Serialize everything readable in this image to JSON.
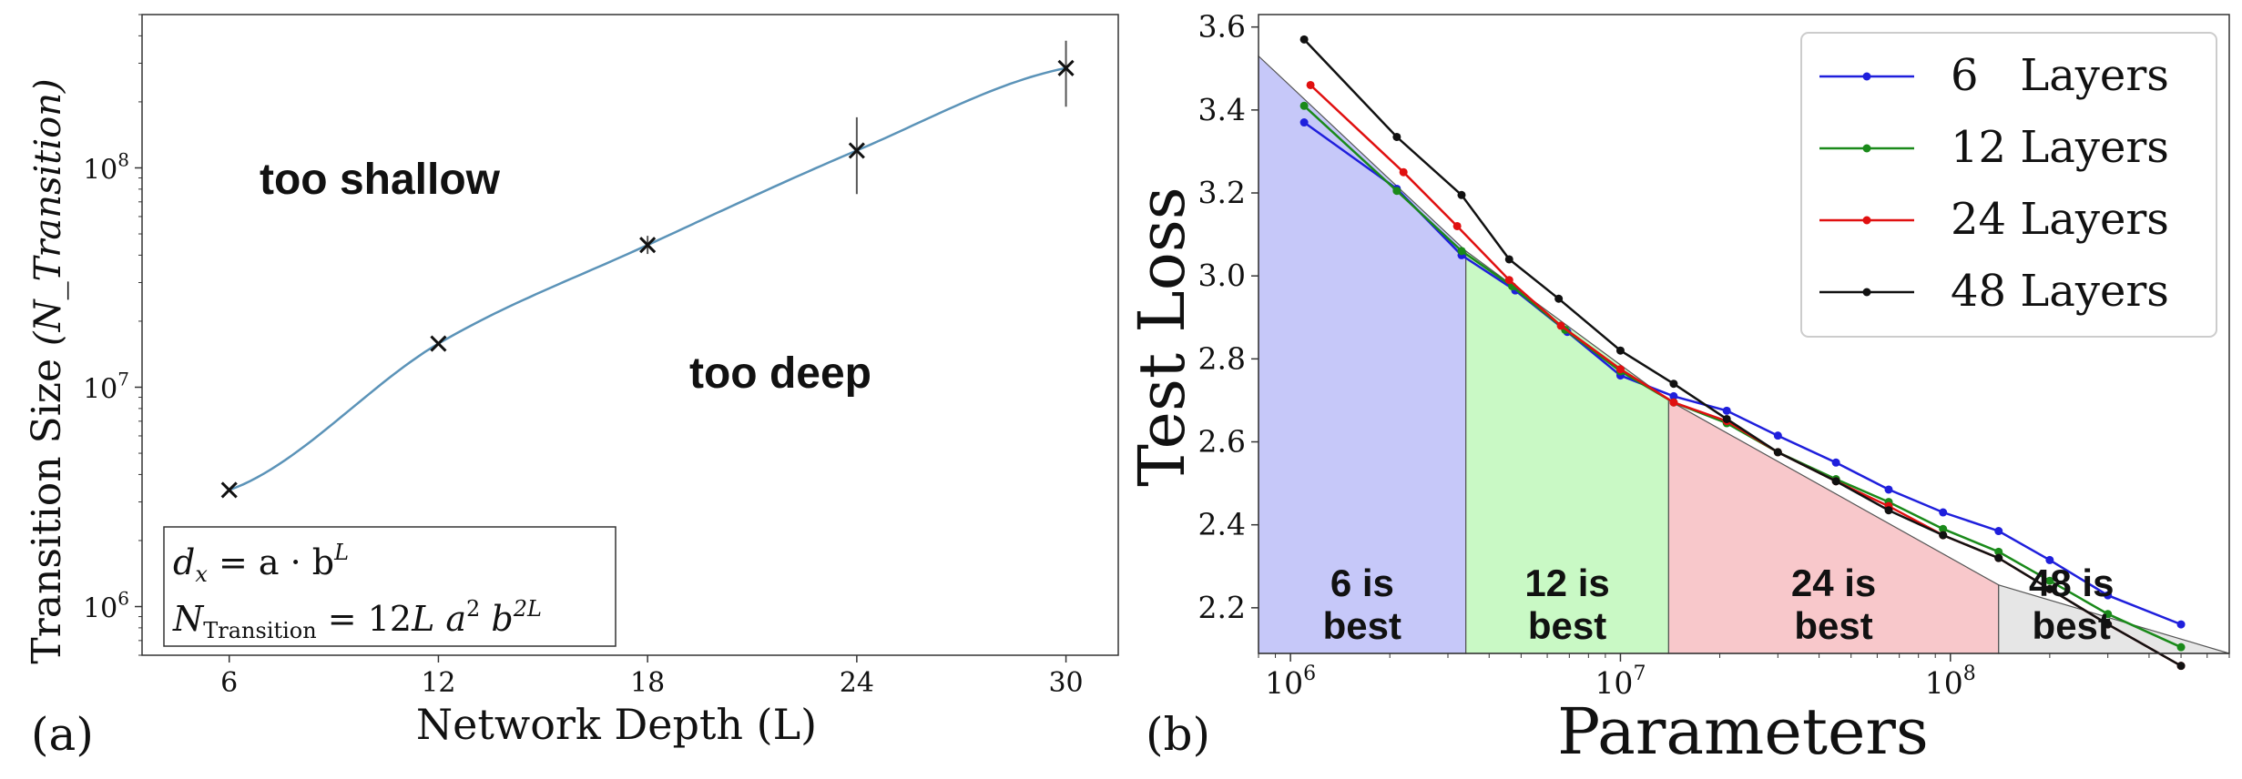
{
  "chart_data": [
    {
      "panel_label": "(a)",
      "type": "line",
      "yscale": "log",
      "xlabel": "Network Depth (L)",
      "ylabel": "Transition Size",
      "ylabel_symbol": "(N_Transition)",
      "xticks": [
        6,
        12,
        18,
        24,
        30
      ],
      "xlim": [
        3.5,
        31.5
      ],
      "ylim": [
        600000,
        500000000
      ],
      "yticks": [
        {
          "value": 1000000,
          "label_base": "10",
          "label_exp": "6"
        },
        {
          "value": 10000000,
          "label_base": "10",
          "label_exp": "7"
        },
        {
          "value": 100000000,
          "label_base": "10",
          "label_exp": "8"
        }
      ],
      "series": [
        {
          "name": "measured",
          "marker": "x",
          "x": [
            6,
            12,
            18,
            24,
            30
          ],
          "y": [
            3400000,
            15800000,
            44500000,
            120000000,
            285000000
          ],
          "yerr_low": [
            3400000,
            15800000,
            40500000,
            76000000,
            190000000
          ],
          "yerr_high": [
            3400000,
            15800000,
            49000000,
            170000000,
            380000000
          ]
        }
      ],
      "fit": {
        "name": "fit",
        "color": "#5b93b8",
        "x_start": 6,
        "x_end": 30
      },
      "annotations": {
        "upper": "too shallow",
        "lower": "too deep"
      },
      "formula": {
        "line1": {
          "lhs": "d",
          "sub": "x",
          "eq": " = a · b",
          "sup": "L"
        },
        "line2": {
          "lhs": "N",
          "sub": "Transition",
          "eq": " = 12",
          "rest": "L a",
          "sup1": "2",
          "b": " b",
          "sup2": "2L"
        }
      }
    },
    {
      "panel_label": "(b)",
      "type": "line",
      "xscale": "log",
      "xlabel": "Parameters",
      "ylabel": "Test Loss",
      "xlim": [
        800000,
        700000000
      ],
      "ylim": [
        2.09,
        3.63
      ],
      "xticks": [
        {
          "value": 1000000,
          "label_base": "10",
          "label_exp": "6"
        },
        {
          "value": 10000000,
          "label_base": "10",
          "label_exp": "7"
        },
        {
          "value": 100000000,
          "label_base": "10",
          "label_exp": "8"
        }
      ],
      "yticks": [
        2.2,
        2.4,
        2.6,
        2.8,
        3.0,
        3.2,
        3.4,
        3.6
      ],
      "ytick_labels": [
        "2.2",
        "2.4",
        "2.6",
        "2.8",
        "3.0",
        "3.2",
        "3.4",
        "3.6"
      ],
      "legend_position": "top-right",
      "series": [
        {
          "name": "6   Layers",
          "color": "#1f1fdc",
          "x": [
            1100000,
            2100000,
            3300000,
            4800000,
            6900000,
            10000000,
            14500000,
            21000000,
            30000000,
            45000000,
            65000000,
            95000000,
            140000000,
            200000000,
            300000000,
            500000000
          ],
          "y": [
            3.37,
            3.21,
            3.05,
            2.965,
            2.865,
            2.76,
            2.71,
            2.675,
            2.615,
            2.55,
            2.485,
            2.43,
            2.385,
            2.315,
            2.23,
            2.16
          ]
        },
        {
          "name": "12 Layers",
          "color": "#1a8a1a",
          "x": [
            1100000,
            2100000,
            3300000,
            4700000,
            6800000,
            10000000,
            14500000,
            21000000,
            30000000,
            45000000,
            65000000,
            95000000,
            140000000,
            200000000,
            300000000,
            500000000
          ],
          "y": [
            3.41,
            3.205,
            3.06,
            2.975,
            2.87,
            2.77,
            2.695,
            2.645,
            2.575,
            2.51,
            2.455,
            2.39,
            2.335,
            2.265,
            2.185,
            2.105
          ]
        },
        {
          "name": "24 Layers",
          "color": "#e01010",
          "x": [
            1150000,
            2200000,
            3200000,
            4600000,
            6600000,
            10000000,
            14500000,
            21000000,
            30000000,
            45000000,
            65000000,
            95000000,
            140000000,
            200000000,
            300000000,
            500000000
          ],
          "y": [
            3.46,
            3.25,
            3.12,
            2.99,
            2.88,
            2.775,
            2.695,
            2.65,
            2.575,
            2.505,
            2.445,
            2.375,
            2.32,
            2.245,
            2.16,
            2.06
          ]
        },
        {
          "name": "48 Layers",
          "color": "#111111",
          "x": [
            1100000,
            2100000,
            3300000,
            4600000,
            6500000,
            10000000,
            14500000,
            21000000,
            30000000,
            45000000,
            65000000,
            95000000,
            140000000,
            200000000,
            300000000,
            500000000
          ],
          "y": [
            3.57,
            3.335,
            3.195,
            3.04,
            2.945,
            2.82,
            2.74,
            2.655,
            2.575,
            2.505,
            2.435,
            2.375,
            2.32,
            2.245,
            2.16,
            2.06
          ]
        }
      ],
      "regions": [
        {
          "label_line1": "6 is",
          "label_line2": "best",
          "color": "#c6c8f9",
          "x_start": 800000,
          "x_end": 3400000
        },
        {
          "label_line1": "12 is",
          "label_line2": "best",
          "color": "#c9f9c5",
          "x_start": 3400000,
          "x_end": 14000000
        },
        {
          "label_line1": "24 is",
          "label_line2": "best",
          "color": "#f8c8cb",
          "x_start": 14000000,
          "x_end": 140000000
        },
        {
          "label_line1": "48 is",
          "label_line2": "best",
          "color": "#e6e6e6",
          "x_start": 140000000,
          "x_end": 700000000
        }
      ],
      "envelope": {
        "x": [
          800000,
          3400000,
          14000000,
          140000000,
          700000000
        ],
        "y": [
          3.53,
          3.06,
          2.7,
          2.255,
          2.09
        ]
      }
    }
  ]
}
